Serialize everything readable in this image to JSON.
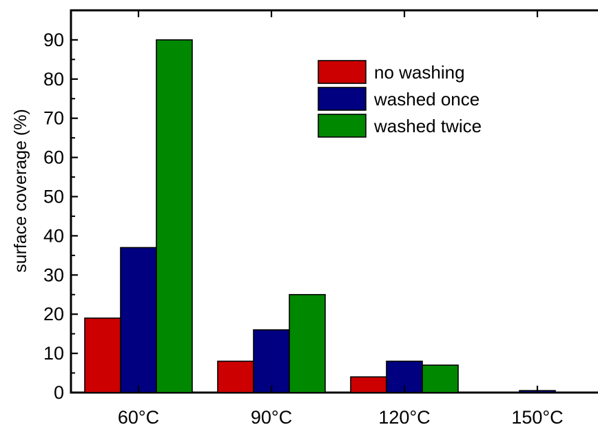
{
  "chart_data": {
    "type": "bar",
    "categories": [
      "60°C",
      "90°C",
      "120°C",
      "150°C"
    ],
    "series": [
      {
        "name": "no washing",
        "color": "#cc0000",
        "values": [
          19,
          8,
          4,
          0
        ]
      },
      {
        "name": "washed once",
        "color": "#000080",
        "values": [
          37,
          16,
          8,
          0.5
        ]
      },
      {
        "name": "washed twice",
        "color": "#008800",
        "values": [
          90,
          25,
          7,
          0
        ]
      }
    ],
    "title": "",
    "xlabel": "",
    "ylabel": "surface coverage (%)",
    "ylim": [
      0,
      90
    ],
    "yticks": [
      0,
      10,
      20,
      30,
      40,
      50,
      60,
      70,
      80,
      90
    ],
    "ytick_labels": [
      "0",
      "10",
      "20",
      "30",
      "40",
      "50",
      "60",
      "70",
      "80",
      "90"
    ],
    "grid": false,
    "legend_position": "top-right"
  }
}
